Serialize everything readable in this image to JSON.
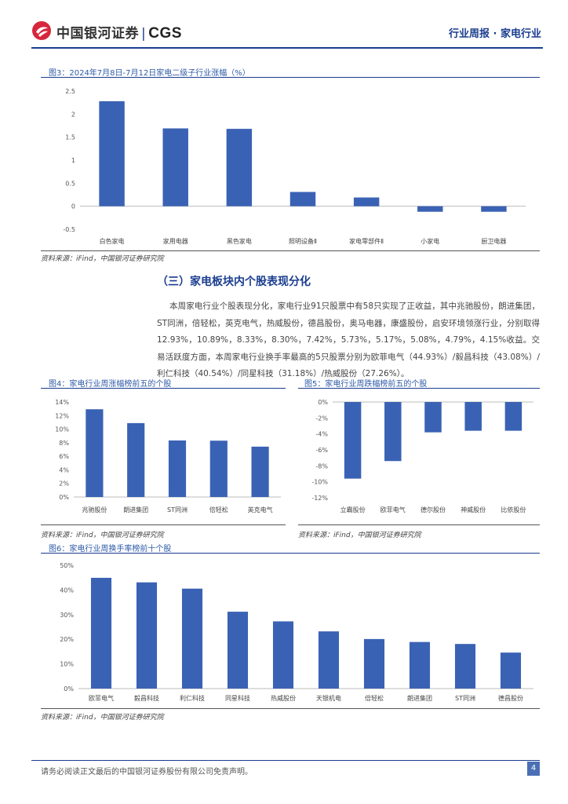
{
  "header": {
    "brand": "中国银河证券",
    "brand_separator": "|",
    "brand_en": "CGS",
    "report_type": "行业周报 · 家电行业",
    "logo_icon": "cgs-logo-icon",
    "accent_color": "#1a3d8f"
  },
  "figures": [
    {
      "title": "图3：2024年7月8日-7月12日家电二级子行业涨幅（%）",
      "source": "资料来源：iFind，中国银河证券研究院",
      "chart_data": {
        "type": "bar",
        "categories": [
          "白色家电",
          "家用电器",
          "黑色家电",
          "照明设备Ⅱ",
          "家电零部件Ⅱ",
          "小家电",
          "厨卫电器"
        ],
        "values": [
          2.28,
          1.69,
          1.68,
          0.31,
          0.19,
          -0.12,
          -0.12
        ],
        "ylim": [
          -0.5,
          2.5
        ],
        "yticks": [
          -0.5,
          0,
          0.5,
          1,
          1.5,
          2,
          2.5
        ],
        "ytick_labels": [
          "-0.5",
          "0",
          "0.5",
          "1",
          "1.5",
          "2",
          "2.5"
        ],
        "bar_color": "#3a62b4",
        "grid": false
      }
    },
    {
      "title": "图4：家电行业周涨幅榜前五的个股",
      "source": "资料来源：iFind，中国银河证券研究院",
      "chart_data": {
        "type": "bar",
        "categories": [
          "兆驰股份",
          "朗进集团",
          "ST同洲",
          "倍轻松",
          "英克电气"
        ],
        "values": [
          12.93,
          10.89,
          8.33,
          8.3,
          7.42
        ],
        "ylim": [
          0,
          14
        ],
        "yticks": [
          0,
          2,
          4,
          6,
          8,
          10,
          12,
          14
        ],
        "ytick_labels": [
          "0%",
          "2%",
          "4%",
          "6%",
          "8%",
          "10%",
          "12%",
          "14%"
        ],
        "bar_color": "#3a62b4",
        "grid": false
      }
    },
    {
      "title": "图5：家电行业周跌幅榜前五的个股",
      "source": "资料来源：iFind，中国银河证券研究院",
      "chart_data": {
        "type": "bar",
        "categories": [
          "立霸股份",
          "欧菲电气",
          "德尔股份",
          "神威股份",
          "比依股份"
        ],
        "values": [
          -9.6,
          -7.4,
          -3.8,
          -3.6,
          -3.6
        ],
        "ylim": [
          -12,
          0
        ],
        "yticks": [
          0,
          -2,
          -4,
          -6,
          -8,
          -10,
          -12
        ],
        "ytick_labels": [
          "0%",
          "-2%",
          "-4%",
          "-6%",
          "-8%",
          "-10%",
          "-12%"
        ],
        "bar_color": "#3a62b4",
        "grid": false
      }
    },
    {
      "title": "图6：家电行业周换手率榜前十个股",
      "source": "资料来源：iFind，中国银河证券研究院",
      "chart_data": {
        "type": "bar",
        "categories": [
          "欧菲电气",
          "毅昌科技",
          "利仁科技",
          "同星科技",
          "热威股份",
          "天银机电",
          "倍轻松",
          "朗进集团",
          "ST同洲",
          "德昌股份"
        ],
        "values": [
          44.93,
          43.08,
          40.54,
          31.18,
          27.26,
          23.2,
          20.1,
          18.9,
          18.1,
          14.6
        ],
        "ylim": [
          0,
          50
        ],
        "yticks": [
          0,
          10,
          20,
          30,
          40,
          50
        ],
        "ytick_labels": [
          "0%",
          "10%",
          "20%",
          "30%",
          "40%",
          "50%"
        ],
        "bar_color": "#3a62b4",
        "grid": false
      }
    }
  ],
  "section": {
    "heading": "（三）家电板块内个股表现分化",
    "paragraph": "本周家电行业个股表现分化，家电行业91只股票中有58只实现了正收益，其中兆驰股份，朗进集团，ST同洲，倍轻松，英克电气，热威股份，德昌股份，奥马电器，康盛股份，启安环境领涨行业，分别取得12.93%，10.89%，8.33%，8.30%，7.42%，5.73%，5.17%，5.08%，4.79%，4.15%收益。交易活跃度方面，本周家电行业换手率最高的5只股票分别为欧菲电气（44.93%）/毅昌科技（43.08%）/利仁科技（40.54%）/同星科技（31.18%）/热威股份（27.26%）。"
  },
  "footer": {
    "disclaimer": "请务必阅读正文最后的中国银河证券股份有限公司免责声明。",
    "page_number": "4"
  }
}
